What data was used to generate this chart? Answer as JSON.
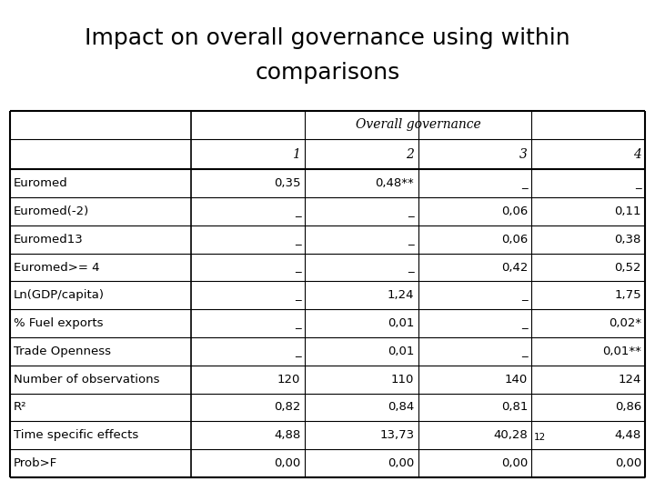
{
  "title_line1": "Impact on overall governance using within",
  "title_line2": "comparisons",
  "header_group": "Overall governance",
  "col_headers": [
    "1",
    "2",
    "3",
    "4"
  ],
  "row_labels": [
    "Euromed",
    "Euromed(-2)",
    "Euromed13",
    "Euromed>= 4",
    "Ln(GDP/capita)",
    "% Fuel exports",
    "Trade Openness",
    "Number of observations",
    "R²",
    "Time specific effects",
    "Prob>F"
  ],
  "table_data": [
    [
      "0,35",
      "0,48**",
      "_",
      "_"
    ],
    [
      "_",
      "_",
      "0,06",
      "0,11"
    ],
    [
      "_",
      "_",
      "0,06",
      "0,38"
    ],
    [
      "_",
      "_",
      "0,42",
      "0,52"
    ],
    [
      "_",
      "1,24",
      "_",
      "1,75"
    ],
    [
      "_",
      "0,01",
      "_",
      "0,02*"
    ],
    [
      "_",
      "0,01",
      "_",
      "0,01**"
    ],
    [
      "120",
      "110",
      "140",
      "124"
    ],
    [
      "0,82",
      "0,84",
      "0,81",
      "0,86"
    ],
    [
      "4,88",
      "13,73",
      "40,28",
      "4,48"
    ],
    [
      "0,00",
      "0,00",
      "0,00",
      "0,00"
    ]
  ],
  "col12_note": "12",
  "bg_color": "#ffffff",
  "title_fontsize": 18,
  "header_fontsize": 10,
  "cell_fontsize": 9.5,
  "row_label_fontsize": 9.5
}
